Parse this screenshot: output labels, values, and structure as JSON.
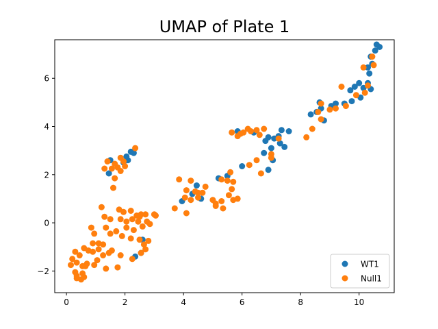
{
  "chart_data": {
    "type": "scatter",
    "title": "UMAP of Plate 1",
    "xlabel": "",
    "ylabel": "",
    "xlim": [
      -0.4,
      11.2
    ],
    "ylim": [
      -2.9,
      7.6
    ],
    "xticks": [
      0,
      2,
      4,
      6,
      8,
      10
    ],
    "yticks": [
      -2,
      0,
      2,
      4,
      6
    ],
    "grid": false,
    "legend_position": "lower-right",
    "series": [
      {
        "name": "WT1",
        "color": "#1f77b4",
        "points": [
          [
            10.6,
            7.4
          ],
          [
            10.7,
            7.3
          ],
          [
            10.55,
            7.15
          ],
          [
            10.4,
            6.9
          ],
          [
            10.45,
            6.6
          ],
          [
            10.3,
            6.45
          ],
          [
            10.35,
            6.2
          ],
          [
            10.3,
            5.8
          ],
          [
            10.15,
            5.6
          ],
          [
            10.4,
            5.55
          ],
          [
            10.0,
            5.8
          ],
          [
            9.85,
            5.65
          ],
          [
            9.7,
            5.5
          ],
          [
            10.05,
            5.2
          ],
          [
            9.75,
            5.05
          ],
          [
            9.5,
            4.95
          ],
          [
            9.2,
            4.95
          ],
          [
            9.05,
            4.85
          ],
          [
            8.7,
            4.75
          ],
          [
            8.55,
            4.6
          ],
          [
            8.35,
            4.5
          ],
          [
            8.8,
            4.25
          ],
          [
            8.65,
            5.0
          ],
          [
            7.6,
            3.8
          ],
          [
            7.35,
            3.85
          ],
          [
            7.25,
            3.6
          ],
          [
            7.1,
            3.5
          ],
          [
            7.0,
            3.1
          ],
          [
            7.3,
            3.3
          ],
          [
            6.9,
            3.55
          ],
          [
            6.8,
            3.4
          ],
          [
            6.75,
            2.9
          ],
          [
            7.05,
            2.6
          ],
          [
            6.9,
            2.2
          ],
          [
            7.45,
            3.15
          ],
          [
            6.0,
            2.35
          ],
          [
            6.4,
            3.75
          ],
          [
            5.85,
            3.8
          ],
          [
            5.2,
            1.85
          ],
          [
            5.5,
            1.95
          ],
          [
            4.45,
            1.55
          ],
          [
            4.3,
            1.2
          ],
          [
            3.95,
            0.9
          ],
          [
            4.6,
            1.0
          ],
          [
            2.2,
            2.95
          ],
          [
            2.1,
            2.6
          ],
          [
            1.95,
            2.5
          ],
          [
            2.05,
            2.75
          ],
          [
            1.5,
            2.6
          ],
          [
            1.45,
            2.05
          ],
          [
            2.35,
            -1.4
          ],
          [
            2.55,
            -1.25
          ],
          [
            2.3,
            2.9
          ],
          [
            2.6,
            -0.7
          ]
        ]
      },
      {
        "name": "Null1",
        "color": "#ff7f0e",
        "points": [
          [
            10.45,
            6.9
          ],
          [
            10.5,
            6.55
          ],
          [
            10.15,
            6.45
          ],
          [
            10.3,
            5.7
          ],
          [
            10.2,
            5.4
          ],
          [
            9.9,
            5.3
          ],
          [
            9.4,
            5.65
          ],
          [
            9.55,
            4.85
          ],
          [
            9.2,
            4.75
          ],
          [
            8.7,
            4.95
          ],
          [
            8.6,
            4.6
          ],
          [
            8.7,
            4.3
          ],
          [
            8.4,
            3.9
          ],
          [
            8.2,
            3.55
          ],
          [
            9.0,
            4.7
          ],
          [
            7.25,
            3.5
          ],
          [
            7.0,
            2.85
          ],
          [
            7.0,
            2.7
          ],
          [
            6.75,
            3.9
          ],
          [
            6.5,
            3.85
          ],
          [
            6.6,
            3.65
          ],
          [
            6.3,
            3.8
          ],
          [
            6.2,
            3.9
          ],
          [
            6.05,
            3.75
          ],
          [
            5.95,
            3.7
          ],
          [
            5.65,
            3.75
          ],
          [
            5.85,
            3.6
          ],
          [
            6.5,
            2.6
          ],
          [
            6.65,
            2.05
          ],
          [
            6.25,
            2.4
          ],
          [
            5.6,
            2.1
          ],
          [
            5.5,
            1.75
          ],
          [
            5.3,
            1.8
          ],
          [
            5.7,
            1.7
          ],
          [
            5.65,
            1.4
          ],
          [
            5.55,
            1.15
          ],
          [
            5.85,
            1.0
          ],
          [
            5.7,
            0.95
          ],
          [
            5.3,
            0.9
          ],
          [
            5.35,
            0.6
          ],
          [
            5.1,
            0.8
          ],
          [
            5.0,
            0.95
          ],
          [
            5.1,
            0.7
          ],
          [
            4.65,
            1.25
          ],
          [
            4.75,
            1.5
          ],
          [
            4.5,
            1.05
          ],
          [
            4.4,
            1.3
          ],
          [
            4.25,
            0.95
          ],
          [
            4.25,
            1.75
          ],
          [
            3.85,
            1.8
          ],
          [
            4.05,
            1.05
          ],
          [
            4.1,
            1.35
          ],
          [
            3.7,
            0.6
          ],
          [
            4.1,
            0.4
          ],
          [
            4.5,
            1.25
          ],
          [
            2.35,
            3.1
          ],
          [
            1.85,
            2.7
          ],
          [
            1.65,
            2.45
          ],
          [
            1.75,
            2.3
          ],
          [
            1.4,
            2.55
          ],
          [
            1.3,
            2.25
          ],
          [
            1.55,
            2.25
          ],
          [
            1.85,
            2.15
          ],
          [
            1.95,
            2.55
          ],
          [
            1.65,
            1.85
          ],
          [
            1.6,
            1.45
          ],
          [
            2.0,
            2.35
          ],
          [
            1.2,
            0.65
          ],
          [
            1.3,
            0.25
          ],
          [
            1.5,
            0.15
          ],
          [
            1.8,
            0.55
          ],
          [
            1.85,
            0.15
          ],
          [
            2.2,
            0.5
          ],
          [
            2.05,
            0.05
          ],
          [
            2.25,
            0.15
          ],
          [
            2.4,
            0.3
          ],
          [
            2.55,
            0.35
          ],
          [
            2.7,
            0.35
          ],
          [
            2.85,
            -0.05
          ],
          [
            2.6,
            -0.15
          ],
          [
            2.45,
            0.05
          ],
          [
            3.05,
            0.3
          ],
          [
            2.3,
            -0.3
          ],
          [
            2.2,
            -0.65
          ],
          [
            2.05,
            -0.2
          ],
          [
            1.9,
            -0.55
          ],
          [
            1.7,
            -0.35
          ],
          [
            1.35,
            -0.2
          ],
          [
            1.5,
            -0.45
          ],
          [
            1.25,
            -0.9
          ],
          [
            1.1,
            -0.85
          ],
          [
            0.95,
            -0.45
          ],
          [
            0.85,
            -0.2
          ],
          [
            0.9,
            -0.85
          ],
          [
            0.9,
            -1.2
          ],
          [
            0.75,
            -1.15
          ],
          [
            0.6,
            -1.05
          ],
          [
            0.7,
            -1.7
          ],
          [
            0.55,
            -1.8
          ],
          [
            0.45,
            -1.35
          ],
          [
            0.3,
            -1.2
          ],
          [
            0.2,
            -1.5
          ],
          [
            0.35,
            -1.65
          ],
          [
            0.15,
            -1.75
          ],
          [
            0.3,
            -2.05
          ],
          [
            0.35,
            -2.3
          ],
          [
            0.5,
            -2.35
          ],
          [
            0.6,
            -2.25
          ],
          [
            0.55,
            -2.1
          ],
          [
            0.35,
            -2.2
          ],
          [
            1.35,
            -1.9
          ],
          [
            1.05,
            -1.55
          ],
          [
            1.25,
            -1.35
          ],
          [
            1.45,
            -1.25
          ],
          [
            1.55,
            -1.15
          ],
          [
            1.75,
            -1.85
          ],
          [
            1.85,
            -1.35
          ],
          [
            2.25,
            -1.5
          ],
          [
            2.5,
            -0.7
          ],
          [
            2.65,
            -0.9
          ],
          [
            2.8,
            -0.75
          ],
          [
            2.7,
            -1.1
          ],
          [
            2.55,
            -1.25
          ],
          [
            0.95,
            -1.75
          ],
          [
            0.65,
            -1.8
          ],
          [
            1.1,
            -1.1
          ],
          [
            2.5,
            0.25
          ],
          [
            2.75,
            0.05
          ],
          [
            3.0,
            0.35
          ],
          [
            1.95,
            0.45
          ]
        ]
      }
    ]
  }
}
